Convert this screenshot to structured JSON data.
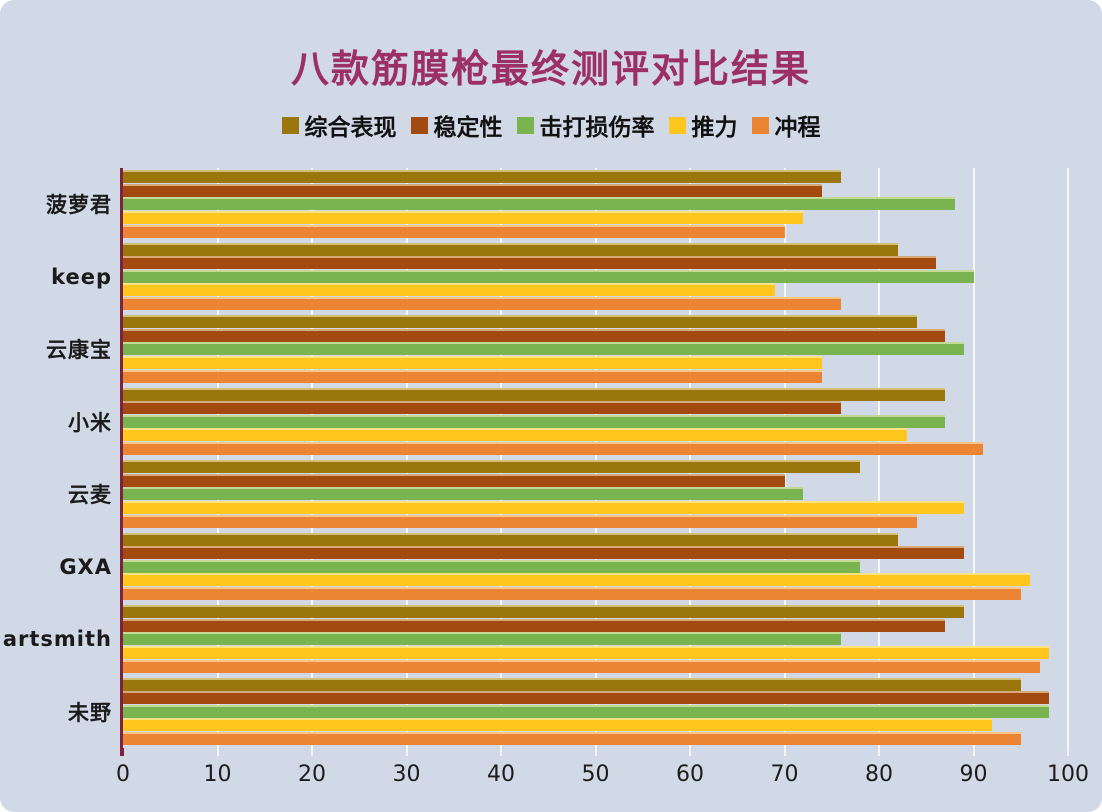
{
  "title": "八款筋膜枪最终测评对比结果",
  "colors": {
    "background": "#d0d9e5",
    "title": "#9c2f63",
    "axis_line": "#7e2240",
    "gridline": "#f4f7fa",
    "series_overall": "#9a760d",
    "series_stability": "#a34a11",
    "series_damage": "#7ab450",
    "series_thrust": "#ffc71e",
    "series_stroke": "#ec8533"
  },
  "chart_data": {
    "type": "bar",
    "orientation": "horizontal",
    "title": "八款筋膜枪最终测评对比结果",
    "categories": [
      "菠萝君",
      "keep",
      "云康宝",
      "小米",
      "云麦",
      "GXA",
      "artsmith",
      "未野"
    ],
    "series": [
      {
        "name": "综合表现",
        "color": "#9a760d",
        "values": [
          76,
          82,
          84,
          87,
          78,
          82,
          89,
          95
        ]
      },
      {
        "name": "稳定性",
        "color": "#a34a11",
        "values": [
          74,
          86,
          87,
          76,
          70,
          89,
          87,
          98
        ]
      },
      {
        "name": "击打损伤率",
        "color": "#7ab450",
        "values": [
          88,
          90,
          89,
          87,
          72,
          78,
          76,
          98
        ]
      },
      {
        "name": "推力",
        "color": "#ffc71e",
        "values": [
          72,
          69,
          74,
          83,
          89,
          96,
          98,
          92
        ]
      },
      {
        "name": "冲程",
        "color": "#ec8533",
        "values": [
          70,
          76,
          74,
          91,
          84,
          95,
          97,
          95
        ]
      }
    ],
    "xlim": [
      0,
      100
    ],
    "x_ticks": [
      0,
      10,
      20,
      30,
      40,
      50,
      60,
      70,
      80,
      90,
      100
    ],
    "grid": true,
    "legend_position": "top"
  }
}
